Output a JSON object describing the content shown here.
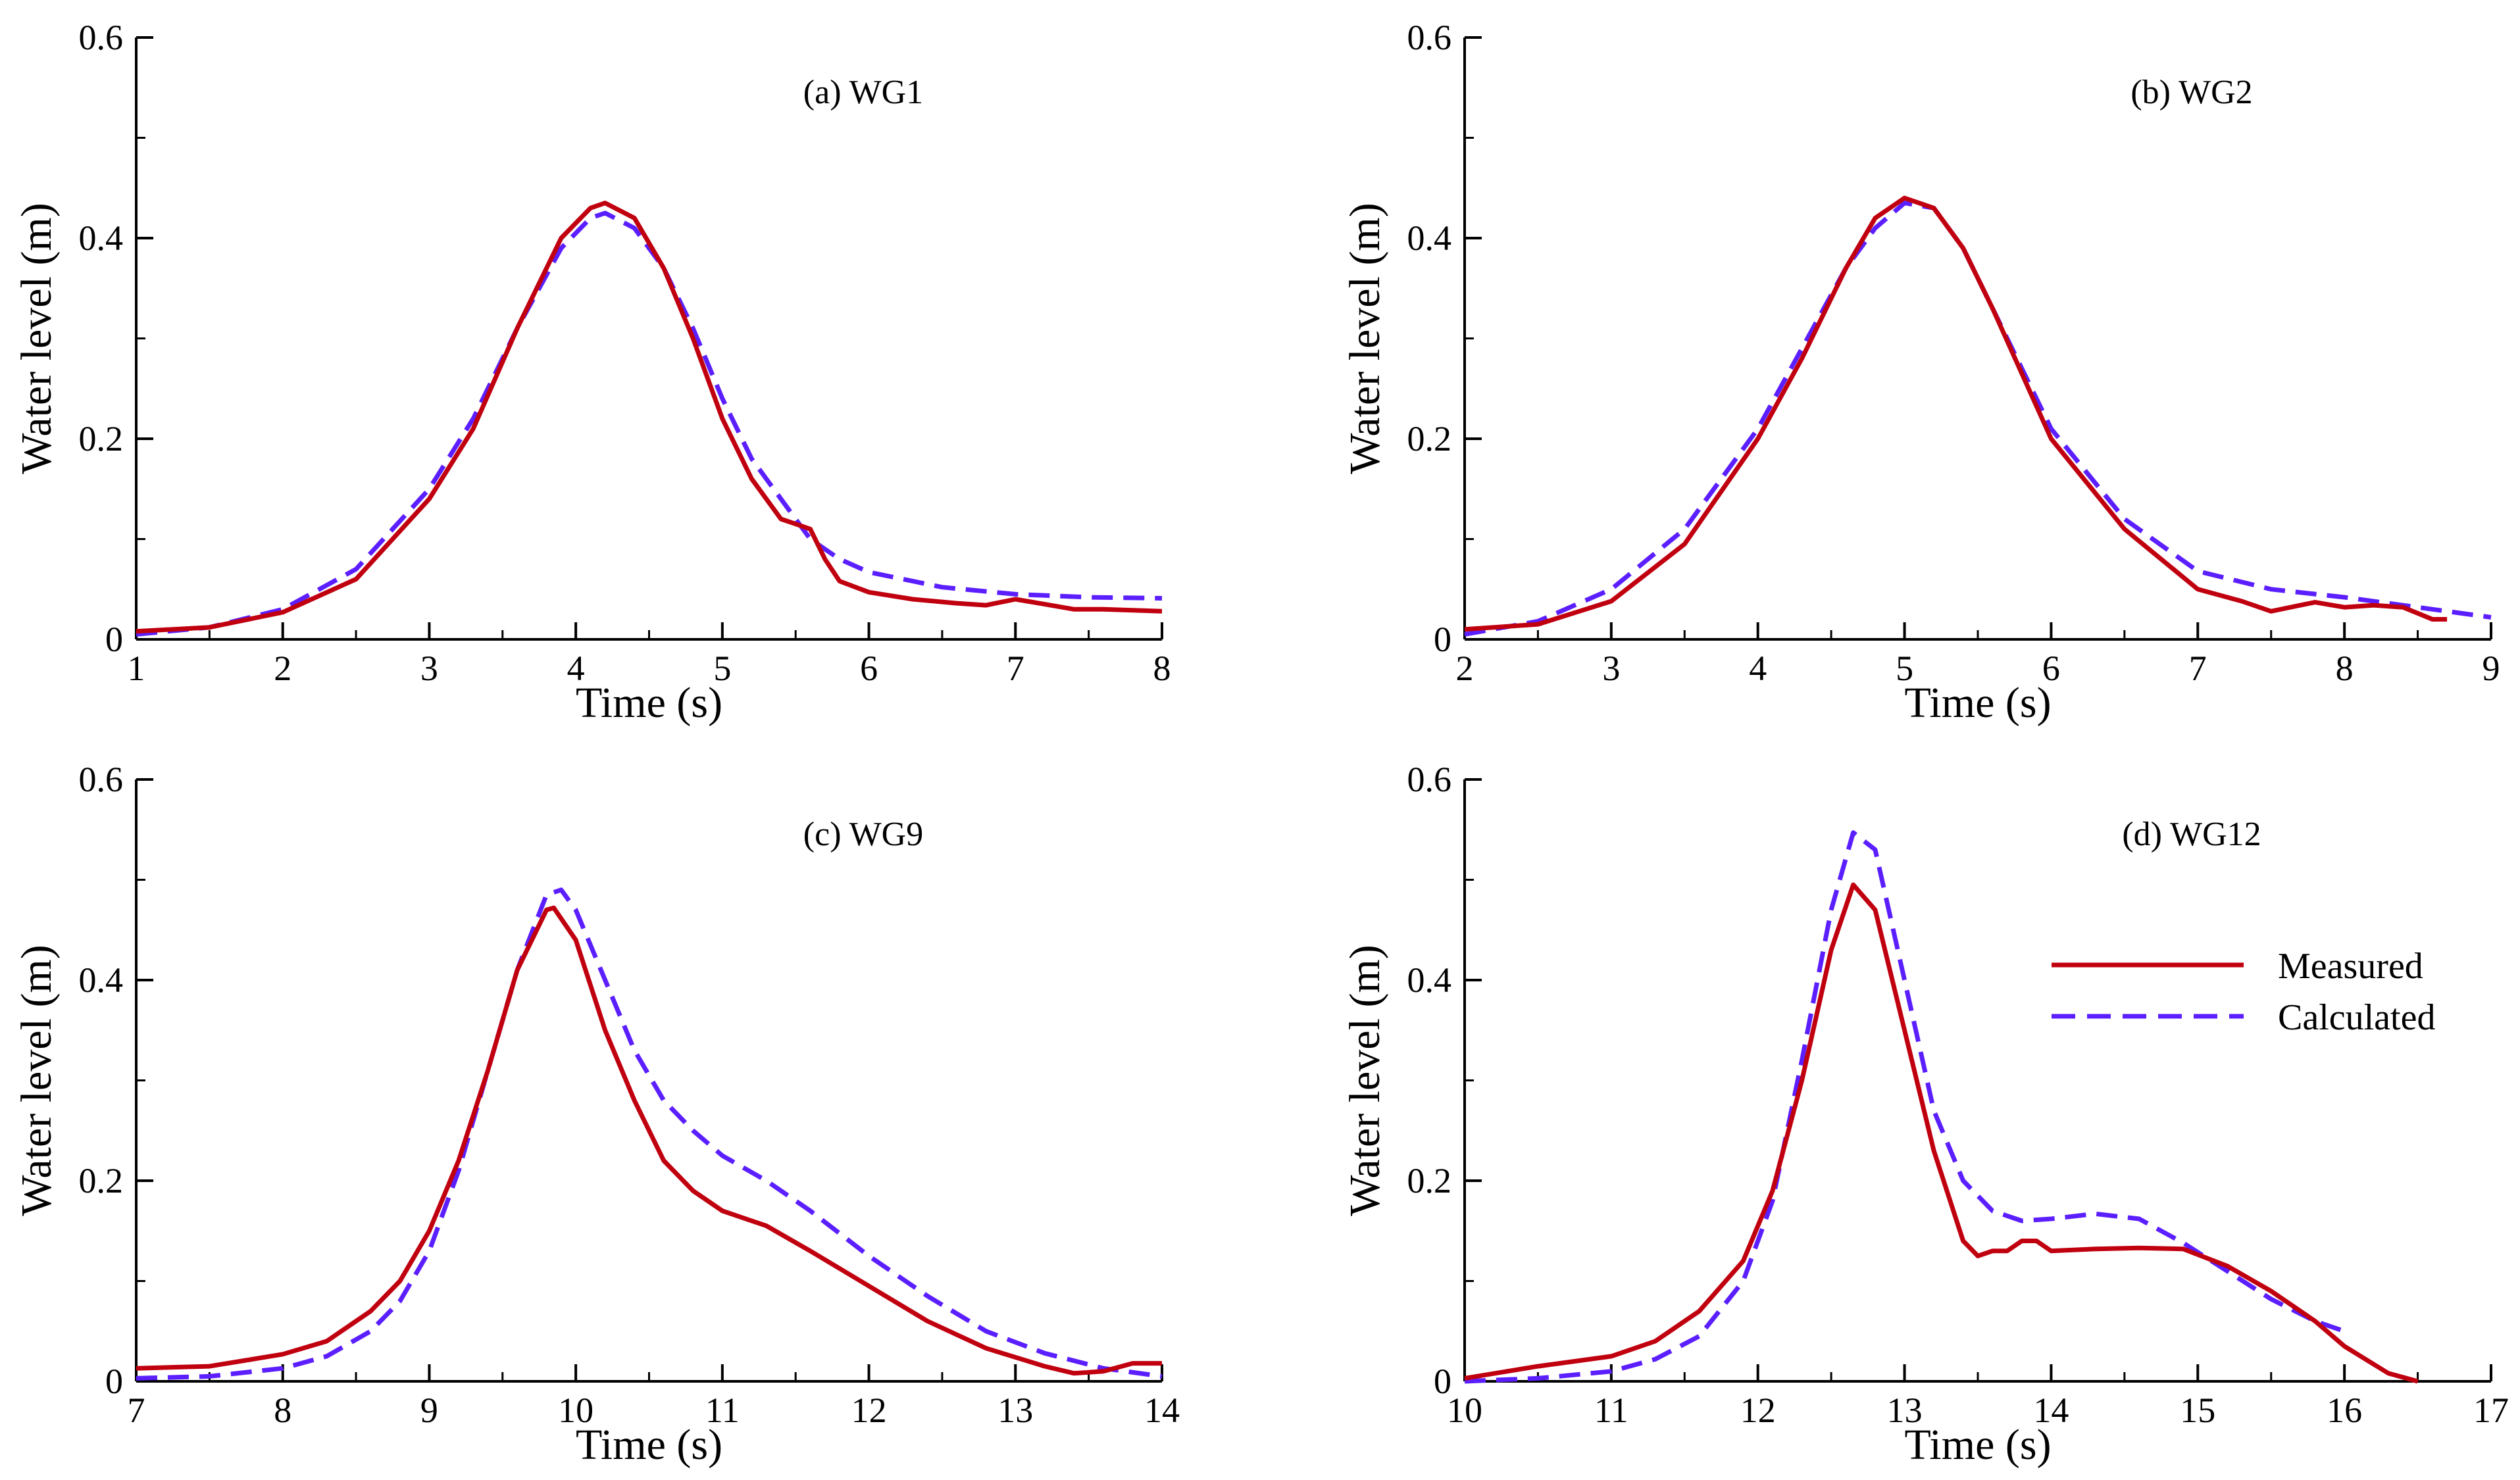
{
  "colors": {
    "measured": "#c0000f",
    "calculated": "#5b1fff",
    "axis": "#000000"
  },
  "legend": [
    {
      "name": "Measured",
      "style": "solid",
      "color": "#c0000f"
    },
    {
      "name": "Calculated",
      "style": "dashed",
      "color": "#5b1fff"
    }
  ],
  "chart_data": [
    {
      "type": "line",
      "title": "(a) WG1",
      "xlabel": "Time (s)",
      "ylabel": "Water level (m)",
      "xlim": [
        1,
        8
      ],
      "ylim": [
        0,
        0.6
      ],
      "xticks": [
        1,
        2,
        3,
        4,
        5,
        6,
        7,
        8
      ],
      "yticks": [
        0,
        0.2,
        0.4,
        0.6
      ],
      "grid": false,
      "series": [
        {
          "name": "Measured",
          "x": [
            1,
            1.5,
            2,
            2.5,
            3,
            3.3,
            3.6,
            3.9,
            4.1,
            4.2,
            4.4,
            4.6,
            4.8,
            5,
            5.2,
            5.4,
            5.5,
            5.6,
            5.7,
            5.8,
            6,
            6.3,
            6.6,
            6.8,
            7,
            7.2,
            7.4,
            7.6,
            8
          ],
          "y": [
            0.008,
            0.012,
            0.027,
            0.06,
            0.14,
            0.21,
            0.31,
            0.4,
            0.43,
            0.435,
            0.42,
            0.37,
            0.3,
            0.22,
            0.16,
            0.12,
            0.115,
            0.11,
            0.08,
            0.058,
            0.047,
            0.04,
            0.036,
            0.034,
            0.04,
            0.035,
            0.03,
            0.03,
            0.028
          ]
        },
        {
          "name": "Calculated",
          "x": [
            1,
            1.5,
            2,
            2.5,
            3,
            3.3,
            3.6,
            3.9,
            4.1,
            4.2,
            4.4,
            4.6,
            4.8,
            5,
            5.2,
            5.4,
            5.6,
            5.8,
            6,
            6.5,
            7,
            7.5,
            8
          ],
          "y": [
            0.005,
            0.012,
            0.03,
            0.07,
            0.15,
            0.22,
            0.31,
            0.39,
            0.42,
            0.425,
            0.41,
            0.37,
            0.31,
            0.24,
            0.18,
            0.14,
            0.1,
            0.08,
            0.067,
            0.052,
            0.045,
            0.042,
            0.041
          ]
        }
      ]
    },
    {
      "type": "line",
      "title": "(b) WG2",
      "xlabel": "Time (s)",
      "ylabel": "Water level (m)",
      "xlim": [
        2,
        9
      ],
      "ylim": [
        0,
        0.6
      ],
      "xticks": [
        2,
        3,
        4,
        5,
        6,
        7,
        8,
        9
      ],
      "yticks": [
        0,
        0.2,
        0.4,
        0.6
      ],
      "grid": false,
      "series": [
        {
          "name": "Measured",
          "x": [
            2,
            2.5,
            3,
            3.5,
            4,
            4.3,
            4.6,
            4.8,
            5,
            5.2,
            5.4,
            5.6,
            6,
            6.5,
            7,
            7.3,
            7.5,
            7.7,
            7.8,
            8,
            8.2,
            8.4,
            8.6,
            8.7
          ],
          "y": [
            0.01,
            0.015,
            0.038,
            0.095,
            0.2,
            0.28,
            0.37,
            0.42,
            0.44,
            0.43,
            0.39,
            0.33,
            0.2,
            0.11,
            0.05,
            0.038,
            0.028,
            0.034,
            0.037,
            0.032,
            0.034,
            0.032,
            0.02,
            0.02
          ]
        },
        {
          "name": "Calculated",
          "x": [
            2,
            2.5,
            3,
            3.5,
            4,
            4.3,
            4.6,
            4.8,
            5,
            5.2,
            5.4,
            5.6,
            6,
            6.5,
            7,
            7.5,
            8,
            8.5,
            9
          ],
          "y": [
            0.005,
            0.018,
            0.05,
            0.11,
            0.21,
            0.29,
            0.37,
            0.41,
            0.435,
            0.43,
            0.39,
            0.33,
            0.21,
            0.12,
            0.068,
            0.05,
            0.042,
            0.032,
            0.022
          ]
        }
      ]
    },
    {
      "type": "line",
      "title": "(c) WG9",
      "xlabel": "Time (s)",
      "ylabel": "Water level (m)",
      "xlim": [
        7,
        14
      ],
      "ylim": [
        0,
        0.6
      ],
      "xticks": [
        7,
        8,
        9,
        10,
        11,
        12,
        13,
        14
      ],
      "yticks": [
        0,
        0.2,
        0.4,
        0.6
      ],
      "grid": false,
      "series": [
        {
          "name": "Measured",
          "x": [
            7,
            7.5,
            8,
            8.3,
            8.6,
            8.8,
            9,
            9.2,
            9.4,
            9.6,
            9.8,
            9.85,
            10,
            10.2,
            10.4,
            10.6,
            10.8,
            11,
            11.3,
            11.6,
            12,
            12.4,
            12.8,
            13.2,
            13.4,
            13.6,
            13.8,
            14
          ],
          "y": [
            0.013,
            0.015,
            0.027,
            0.04,
            0.07,
            0.1,
            0.15,
            0.22,
            0.31,
            0.41,
            0.47,
            0.472,
            0.44,
            0.35,
            0.28,
            0.22,
            0.19,
            0.17,
            0.155,
            0.13,
            0.095,
            0.06,
            0.033,
            0.015,
            0.008,
            0.01,
            0.018,
            0.018
          ]
        },
        {
          "name": "Calculated",
          "x": [
            7,
            7.5,
            8,
            8.3,
            8.6,
            8.8,
            9,
            9.2,
            9.4,
            9.6,
            9.8,
            9.9,
            10,
            10.2,
            10.4,
            10.6,
            10.8,
            11,
            11.3,
            11.6,
            12,
            12.4,
            12.8,
            13.2,
            13.6,
            14
          ],
          "y": [
            0.003,
            0.005,
            0.013,
            0.025,
            0.05,
            0.08,
            0.13,
            0.21,
            0.31,
            0.41,
            0.485,
            0.49,
            0.47,
            0.4,
            0.33,
            0.28,
            0.25,
            0.225,
            0.2,
            0.17,
            0.125,
            0.085,
            0.05,
            0.028,
            0.013,
            0.005
          ]
        }
      ]
    },
    {
      "type": "line",
      "title": "(d) WG12",
      "xlabel": "Time (s)",
      "ylabel": "Water level (m)",
      "xlim": [
        10,
        17
      ],
      "ylim": [
        0,
        0.6
      ],
      "xticks": [
        10,
        11,
        12,
        13,
        14,
        15,
        16,
        17
      ],
      "yticks": [
        0,
        0.2,
        0.4,
        0.6
      ],
      "grid": false,
      "legend_position": "right",
      "series": [
        {
          "name": "Measured",
          "x": [
            10,
            10.5,
            11,
            11.3,
            11.6,
            11.9,
            12.1,
            12.3,
            12.5,
            12.65,
            12.8,
            13,
            13.2,
            13.4,
            13.5,
            13.6,
            13.7,
            13.8,
            13.9,
            14,
            14.3,
            14.6,
            14.9,
            15.2,
            15.5,
            15.8,
            16,
            16.3,
            16.5
          ],
          "y": [
            0.003,
            0.015,
            0.025,
            0.04,
            0.07,
            0.12,
            0.19,
            0.3,
            0.43,
            0.495,
            0.47,
            0.35,
            0.23,
            0.14,
            0.125,
            0.13,
            0.13,
            0.14,
            0.14,
            0.13,
            0.132,
            0.133,
            0.132,
            0.115,
            0.09,
            0.06,
            0.035,
            0.008,
            0
          ]
        },
        {
          "name": "Calculated",
          "x": [
            10,
            10.5,
            11,
            11.3,
            11.6,
            11.9,
            12.1,
            12.3,
            12.5,
            12.65,
            12.8,
            13,
            13.2,
            13.4,
            13.6,
            13.8,
            14,
            14.3,
            14.6,
            14.9,
            15.2,
            15.5,
            15.8,
            16
          ],
          "y": [
            0,
            0.003,
            0.01,
            0.022,
            0.045,
            0.1,
            0.18,
            0.32,
            0.47,
            0.547,
            0.53,
            0.4,
            0.27,
            0.2,
            0.17,
            0.16,
            0.162,
            0.167,
            0.162,
            0.138,
            0.11,
            0.082,
            0.06,
            0.05
          ]
        }
      ]
    }
  ]
}
